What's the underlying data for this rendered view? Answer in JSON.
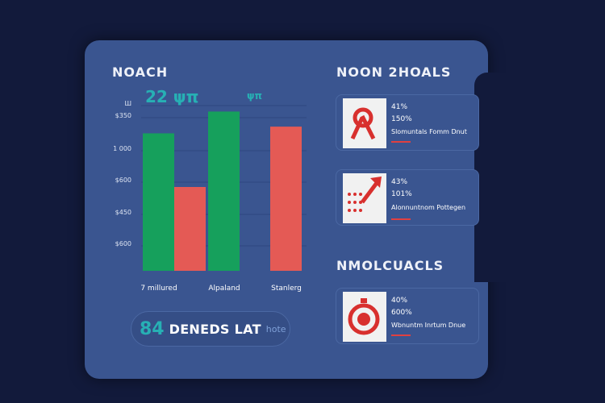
{
  "colors": {
    "background": "#121a3b",
    "panel": "#3a5590",
    "green": "#16a05c",
    "red": "#e45a55",
    "teal": "#27b0b4"
  },
  "left": {
    "title": "NOACH",
    "badge": "22 ψπ",
    "badge2": "ψπ"
  },
  "chart_data": {
    "type": "bar",
    "title": "NOACH",
    "categories": [
      "7 millured",
      "Alpaland",
      "Stanlerg"
    ],
    "series": [
      {
        "color": "#16a05c",
        "values": [
          82,
          95,
          null
        ]
      },
      {
        "color": "#e45a55",
        "values": [
          50,
          null,
          86
        ]
      }
    ],
    "yticks": [
      "Ш",
      "$350",
      "1 000",
      "$600",
      "$450",
      "$600"
    ],
    "ylim": [
      0,
      100
    ],
    "grid": true
  },
  "right": {
    "title": "NOON 2HOALS",
    "cards": [
      {
        "icon": "target-icon",
        "line1": "41%",
        "line2": "150%",
        "line3": "Slomuntals Fomm Dnut"
      },
      {
        "icon": "trend-up-icon",
        "line1": "43%",
        "line2": "101%",
        "line3": "Alonnuntnom Pottegen"
      }
    ],
    "section2_title": "NMOLCUACLS",
    "card3": {
      "icon": "stopwatch-icon",
      "line1": "40%",
      "line2": "600%",
      "line3": "Wbnuntm Inrtum Dnue"
    }
  },
  "summary": {
    "value": "84",
    "label": "DENEDS LAT",
    "suffix": "hote"
  }
}
